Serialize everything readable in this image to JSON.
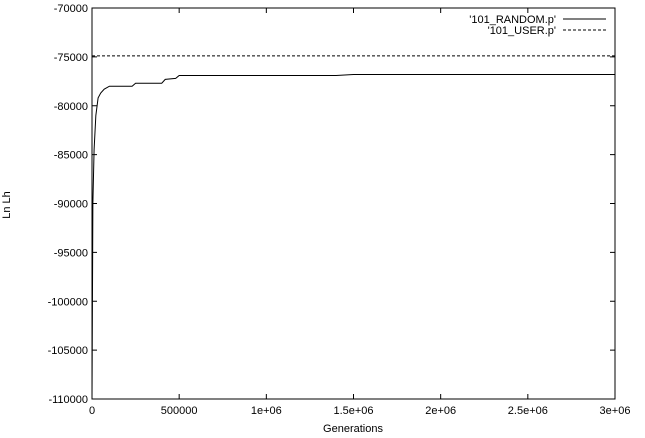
{
  "chart_data": {
    "type": "line",
    "title": "",
    "xlabel": "Generations",
    "ylabel": "Ln Lh",
    "xlim": [
      0,
      3000000
    ],
    "ylim": [
      -110000,
      -70000
    ],
    "x_ticks": [
      0,
      500000,
      1000000,
      1500000,
      2000000,
      2500000,
      3000000
    ],
    "x_tick_labels": [
      "0",
      "500000",
      "1e+06",
      "1.5e+06",
      "2e+06",
      "2.5e+06",
      "3e+06"
    ],
    "y_ticks": [
      -110000,
      -105000,
      -100000,
      -95000,
      -90000,
      -85000,
      -80000,
      -75000,
      -70000
    ],
    "y_tick_labels": [
      "-110000",
      "-105000",
      "-100000",
      "-95000",
      "-90000",
      "-85000",
      "-80000",
      "-75000",
      "-70000"
    ],
    "grid": false,
    "legend_position": "top-right",
    "series": [
      {
        "name": "'101_RANDOM.p'",
        "style": "solid",
        "color": "#000000",
        "points": [
          [
            0,
            -110000
          ],
          [
            5000,
            -90000
          ],
          [
            12000,
            -84500
          ],
          [
            22000,
            -81000
          ],
          [
            35000,
            -79200
          ],
          [
            50000,
            -78700
          ],
          [
            70000,
            -78300
          ],
          [
            100000,
            -78000
          ],
          [
            150000,
            -78000
          ],
          [
            230000,
            -78000
          ],
          [
            250000,
            -77700
          ],
          [
            400000,
            -77700
          ],
          [
            420000,
            -77300
          ],
          [
            480000,
            -77200
          ],
          [
            500000,
            -76900
          ],
          [
            1400000,
            -76900
          ],
          [
            1500000,
            -76800
          ],
          [
            3000000,
            -76800
          ]
        ]
      },
      {
        "name": "'101_USER.p'",
        "style": "dashed",
        "color": "#000000",
        "points": [
          [
            0,
            -74900
          ],
          [
            3000000,
            -74900
          ]
        ]
      }
    ]
  }
}
